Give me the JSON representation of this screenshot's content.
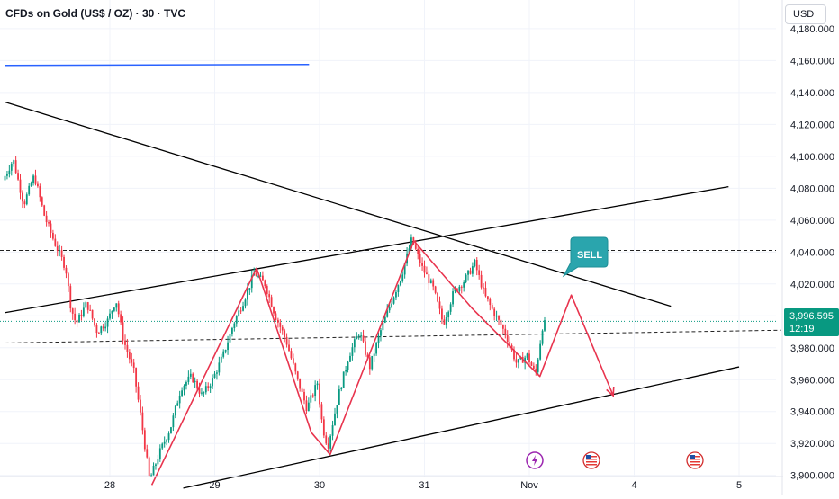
{
  "header": {
    "title": "CFDs on Gold (US$ / OZ) · 30 · TVC",
    "currency": "USD"
  },
  "last_price": {
    "price": "3,996.595",
    "countdown": "12:19",
    "color": "#089981"
  },
  "annotation": {
    "label": "SELL",
    "color": "#2aa5ad"
  },
  "colors": {
    "up": "#089981",
    "down": "#f23645",
    "zigzag": "#e8344e",
    "trend": "#000000",
    "horizontal": "#2962ff"
  },
  "event_icons": [
    "lightning-event-icon",
    "us-flag-event-icon",
    "us-flag-event-icon"
  ],
  "chart_data": {
    "type": "candlestick",
    "title": "CFDs on Gold (US$ / OZ) · 30 · TVC",
    "interval": "30",
    "ylim": [
      3888,
      4198
    ],
    "y_ticks": [
      "4,180.000",
      "4,160.000",
      "4,140.000",
      "4,120.000",
      "4,100.000",
      "4,080.000",
      "4,060.000",
      "4,040.000",
      "4,020.000",
      "4,000.000",
      "3,980.000",
      "3,960.000",
      "3,940.000",
      "3,920.000",
      "3,900.000"
    ],
    "y_tick_values": [
      4180,
      4160,
      4140,
      4120,
      4100,
      4080,
      4060,
      4040,
      4020,
      4000,
      3980,
      3960,
      3940,
      3920,
      3900
    ],
    "x_ticks": [
      {
        "label": "28",
        "day": 28
      },
      {
        "label": "29",
        "day": 29
      },
      {
        "label": "30",
        "day": 30
      },
      {
        "label": "31",
        "day": 31
      },
      {
        "label": "Nov",
        "day": 32
      },
      {
        "label": "4",
        "day": 33
      },
      {
        "label": "5",
        "day": 34
      }
    ],
    "x_range_days": [
      27.0,
      34.4
    ],
    "price_path": [
      [
        27.0,
        4085
      ],
      [
        27.1,
        4098
      ],
      [
        27.2,
        4070
      ],
      [
        27.3,
        4088
      ],
      [
        27.4,
        4062
      ],
      [
        27.5,
        4045
      ],
      [
        27.6,
        4030
      ],
      [
        27.65,
        4005
      ],
      [
        27.7,
        3995
      ],
      [
        27.8,
        4008
      ],
      [
        27.9,
        3990
      ],
      [
        28.0,
        3997
      ],
      [
        28.08,
        4010
      ],
      [
        28.15,
        3985
      ],
      [
        28.25,
        3965
      ],
      [
        28.32,
        3935
      ],
      [
        28.4,
        3897
      ],
      [
        28.5,
        3915
      ],
      [
        28.6,
        3930
      ],
      [
        28.7,
        3955
      ],
      [
        28.8,
        3962
      ],
      [
        28.9,
        3950
      ],
      [
        29.0,
        3960
      ],
      [
        29.1,
        3975
      ],
      [
        29.2,
        3995
      ],
      [
        29.3,
        4010
      ],
      [
        29.4,
        4027
      ],
      [
        29.5,
        4020
      ],
      [
        29.6,
        4000
      ],
      [
        29.7,
        3985
      ],
      [
        29.8,
        3962
      ],
      [
        29.9,
        3942
      ],
      [
        30.0,
        3958
      ],
      [
        30.05,
        3930
      ],
      [
        30.1,
        3918
      ],
      [
        30.2,
        3950
      ],
      [
        30.3,
        3975
      ],
      [
        30.4,
        3990
      ],
      [
        30.5,
        3968
      ],
      [
        30.6,
        3990
      ],
      [
        30.7,
        4008
      ],
      [
        30.8,
        4025
      ],
      [
        30.9,
        4048
      ],
      [
        31.0,
        4030
      ],
      [
        31.1,
        4018
      ],
      [
        31.2,
        3995
      ],
      [
        31.3,
        4015
      ],
      [
        31.4,
        4022
      ],
      [
        31.5,
        4033
      ],
      [
        31.6,
        4012
      ],
      [
        31.7,
        4000
      ],
      [
        31.8,
        3988
      ],
      [
        31.9,
        3970
      ],
      [
        32.0,
        3975
      ],
      [
        32.08,
        3963
      ],
      [
        32.15,
        3995
      ]
    ],
    "drawings": {
      "blue_horizontal": {
        "y": 4157,
        "from_day": 27.0,
        "to_day": 29.9
      },
      "descending_resistance": [
        [
          27.0,
          4134
        ],
        [
          33.35,
          4006
        ]
      ],
      "ascending_upper_channel": [
        [
          27.0,
          4002
        ],
        [
          33.9,
          4081
        ]
      ],
      "ascending_support": [
        [
          28.7,
          3892
        ],
        [
          34.0,
          3968
        ]
      ],
      "dashed_resistance": {
        "y": 4041
      },
      "dashed_mid": [
        [
          27.0,
          3983
        ],
        [
          34.4,
          3991
        ]
      ],
      "dotted_last": {
        "y": 3996.6
      },
      "zigzag": [
        [
          28.4,
          3894
        ],
        [
          29.4,
          4030
        ],
        [
          29.92,
          3927
        ],
        [
          30.1,
          3913
        ],
        [
          30.9,
          4047
        ],
        [
          31.45,
          4005
        ],
        [
          32.1,
          3962
        ],
        [
          32.4,
          4013
        ],
        [
          32.8,
          3950
        ]
      ]
    }
  }
}
